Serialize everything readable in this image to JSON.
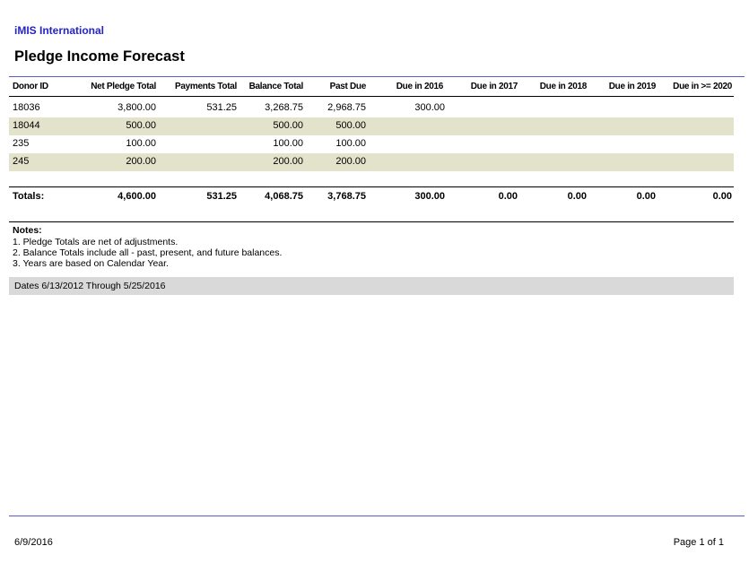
{
  "report": {
    "organization": "iMIS International",
    "title": "Pledge Income Forecast"
  },
  "table": {
    "columns": [
      "Donor ID",
      "Net Pledge Total",
      "Payments Total",
      "Balance Total",
      "Past Due",
      "Due in 2016",
      "Due in 2017",
      "Due in 2018",
      "Due in 2019",
      "Due in >= 2020"
    ],
    "rows": [
      {
        "donor_id": "18036",
        "net_pledge_total": "3,800.00",
        "payments_total": "531.25",
        "balance_total": "3,268.75",
        "past_due": "2,968.75",
        "due_2016": "300.00",
        "highlighted": false
      },
      {
        "donor_id": "18044",
        "net_pledge_total": "500.00",
        "payments_total": "",
        "balance_total": "500.00",
        "past_due": "500.00",
        "due_2016": "",
        "highlighted": true
      },
      {
        "donor_id": "235",
        "net_pledge_total": "100.00",
        "payments_total": "",
        "balance_total": "100.00",
        "past_due": "100.00",
        "due_2016": "",
        "highlighted": false
      },
      {
        "donor_id": "245",
        "net_pledge_total": "200.00",
        "payments_total": "",
        "balance_total": "200.00",
        "past_due": "200.00",
        "due_2016": "",
        "highlighted": true
      }
    ],
    "totals": {
      "label": "Totals:",
      "net_pledge_total": "4,600.00",
      "payments_total": "531.25",
      "balance_total": "4,068.75",
      "past_due": "3,768.75",
      "due_2016": "300.00",
      "due_2017": "0.00",
      "due_2018": "0.00",
      "due_2019": "0.00",
      "due_2020_plus": "0.00"
    }
  },
  "notes": {
    "heading": "Notes:",
    "items": [
      "1. Pledge Totals are net of adjustments.",
      "2. Balance Totals include all - past, present, and future balances.",
      "3. Years are based on Calendar Year."
    ]
  },
  "date_range": "Dates 6/13/2012 Through 5/25/2016",
  "footer": {
    "date": "6/9/2016",
    "page": "Page 1 of 1"
  },
  "colors": {
    "organization_text": "#2424c8",
    "rule_blue": "#5a5ad2",
    "row_highlight": "#e3e3cc",
    "date_bar": "#d9d9d9"
  }
}
